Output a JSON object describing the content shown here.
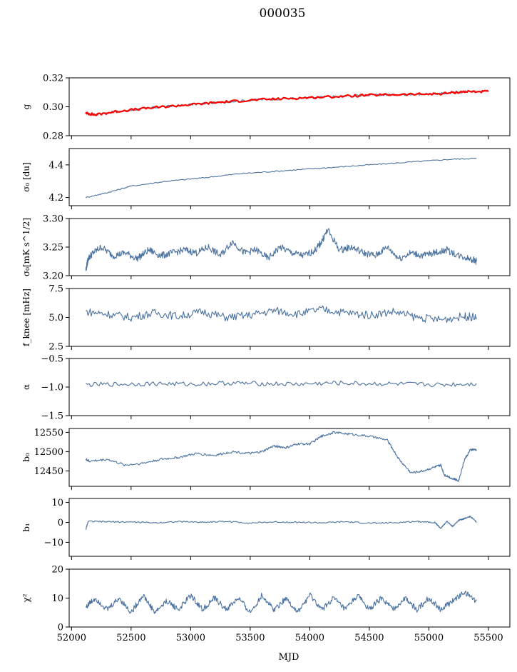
{
  "figure": {
    "title": "000035",
    "xlabel": "MJD"
  },
  "chart_data": [
    {
      "type": "line",
      "id": "g",
      "ylabel": "g",
      "ylim": [
        0.28,
        0.32
      ],
      "yticks": [
        0.28,
        0.3,
        0.32
      ],
      "yticklabels": [
        "0.28",
        "0.30",
        "0.32"
      ],
      "xlim": [
        51980,
        55680
      ],
      "series": [
        {
          "color": "#4c72a0",
          "x": [
            52120,
            52200,
            52400,
            52700,
            53000,
            53300,
            53600,
            53900,
            54200,
            54500,
            54800,
            55100,
            55300,
            55400
          ],
          "y": [
            0.2955,
            0.2945,
            0.297,
            0.2995,
            0.3015,
            0.3035,
            0.305,
            0.306,
            0.307,
            0.308,
            0.3085,
            0.309,
            0.3105,
            0.3105
          ]
        },
        {
          "color": "#ff0000",
          "x": [
            52120,
            52200,
            52400,
            52700,
            53000,
            53300,
            53600,
            53900,
            54200,
            54500,
            54800,
            55100,
            55300,
            55500
          ],
          "y": [
            0.2955,
            0.2945,
            0.297,
            0.2995,
            0.3015,
            0.3035,
            0.305,
            0.306,
            0.307,
            0.308,
            0.3085,
            0.309,
            0.3105,
            0.3105
          ]
        }
      ]
    },
    {
      "type": "line",
      "id": "sigma0",
      "ylabel": "σ₀ [du]",
      "ylim": [
        4.15,
        4.5
      ],
      "yticks": [
        4.2,
        4.4
      ],
      "yticklabels": [
        "4.2",
        "4.4"
      ],
      "xlim": [
        51980,
        55680
      ],
      "series": [
        {
          "color": "#4c72a0",
          "x": [
            52120,
            52300,
            52500,
            52800,
            53100,
            53400,
            53700,
            54000,
            54300,
            54600,
            54900,
            55200,
            55400
          ],
          "y": [
            4.2,
            4.23,
            4.27,
            4.3,
            4.32,
            4.345,
            4.36,
            4.375,
            4.39,
            4.405,
            4.42,
            4.435,
            4.44
          ]
        }
      ]
    },
    {
      "type": "line",
      "id": "sigma0_mK",
      "ylabel": "σ₀[mK s^1/2]",
      "ylim": [
        3.2,
        3.3
      ],
      "yticks": [
        3.2,
        3.25,
        3.3
      ],
      "yticklabels": [
        "3.20",
        "3.25",
        "3.30"
      ],
      "xlim": [
        51980,
        55680
      ],
      "series": [
        {
          "color": "#4c72a0",
          "x": [
            52120,
            52140,
            52180,
            52250,
            52350,
            52450,
            52550,
            52650,
            52750,
            52850,
            52950,
            53050,
            53150,
            53250,
            53350,
            53450,
            53550,
            53650,
            53750,
            53850,
            53950,
            54050,
            54100,
            54150,
            54250,
            54350,
            54450,
            54550,
            54650,
            54750,
            54850,
            54950,
            55050,
            55150,
            55250,
            55350,
            55400
          ],
          "y": [
            3.21,
            3.23,
            3.24,
            3.25,
            3.235,
            3.24,
            3.23,
            3.245,
            3.235,
            3.24,
            3.245,
            3.24,
            3.25,
            3.235,
            3.26,
            3.24,
            3.245,
            3.23,
            3.25,
            3.24,
            3.235,
            3.245,
            3.26,
            3.28,
            3.245,
            3.25,
            3.24,
            3.235,
            3.25,
            3.23,
            3.24,
            3.235,
            3.24,
            3.245,
            3.235,
            3.23,
            3.225
          ]
        }
      ]
    },
    {
      "type": "line",
      "id": "fknee",
      "ylabel": "f_knee [mHz]",
      "ylim": [
        2.5,
        7.5
      ],
      "yticks": [
        2.5,
        5.0,
        7.5
      ],
      "yticklabels": [
        "2.5",
        "5.0",
        "7.5"
      ],
      "xlim": [
        51980,
        55680
      ],
      "series": [
        {
          "color": "#4c72a0",
          "x": [
            52120,
            52300,
            52500,
            52700,
            52900,
            53100,
            53300,
            53500,
            53700,
            53900,
            54100,
            54300,
            54500,
            54700,
            54900,
            55100,
            55300,
            55400
          ],
          "y": [
            5.5,
            5.3,
            5.0,
            5.4,
            5.1,
            5.5,
            5.0,
            5.2,
            5.6,
            5.3,
            5.7,
            5.4,
            5.2,
            5.5,
            5.0,
            4.8,
            5.1,
            5.0
          ]
        }
      ]
    },
    {
      "type": "line",
      "id": "alpha",
      "ylabel": "α",
      "ylim": [
        -1.5,
        -0.5
      ],
      "yticks": [
        -1.5,
        -1.0,
        -0.5
      ],
      "yticklabels": [
        "−1.5",
        "−1.0",
        "−0.5"
      ],
      "xlim": [
        51980,
        55680
      ],
      "series": [
        {
          "color": "#4c72a0",
          "x": [
            52120,
            52400,
            52700,
            53000,
            53300,
            53600,
            53900,
            54200,
            54500,
            54800,
            55100,
            55400
          ],
          "y": [
            -0.96,
            -0.95,
            -0.94,
            -0.95,
            -0.93,
            -0.94,
            -0.95,
            -0.93,
            -0.94,
            -0.95,
            -0.96,
            -0.94
          ]
        }
      ]
    },
    {
      "type": "line",
      "id": "b0",
      "ylabel": "b₀",
      "ylim": [
        12410,
        12560
      ],
      "yticks": [
        12450,
        12500,
        12550
      ],
      "yticklabels": [
        "12450",
        "12500",
        "12550"
      ],
      "xlim": [
        51980,
        55680
      ],
      "series": [
        {
          "color": "#4c72a0",
          "x": [
            52120,
            52150,
            52300,
            52450,
            52600,
            52750,
            52900,
            53050,
            53200,
            53350,
            53500,
            53600,
            53700,
            53800,
            53900,
            54000,
            54100,
            54200,
            54350,
            54500,
            54650,
            54750,
            54850,
            54950,
            55050,
            55100,
            55130,
            55200,
            55250,
            55300,
            55350,
            55400
          ],
          "y": [
            12480,
            12475,
            12480,
            12465,
            12470,
            12480,
            12485,
            12495,
            12490,
            12500,
            12495,
            12500,
            12515,
            12510,
            12520,
            12520,
            12540,
            12550,
            12545,
            12540,
            12530,
            12480,
            12445,
            12450,
            12460,
            12465,
            12440,
            12430,
            12425,
            12480,
            12505,
            12505
          ]
        }
      ]
    },
    {
      "type": "line",
      "id": "b1",
      "ylabel": "b₁",
      "ylim": [
        -17,
        12
      ],
      "yticks": [
        -10,
        0,
        10
      ],
      "yticklabels": [
        "−10",
        "0",
        "10"
      ],
      "xlim": [
        51980,
        55680
      ],
      "series": [
        {
          "color": "#4c72a0",
          "x": [
            52120,
            52140,
            52300,
            52500,
            52700,
            52900,
            53100,
            53300,
            53500,
            53700,
            53900,
            54100,
            54300,
            54500,
            54700,
            54900,
            55050,
            55100,
            55150,
            55200,
            55250,
            55300,
            55350,
            55400
          ],
          "y": [
            -3.5,
            0.5,
            0.3,
            0.2,
            -0.2,
            0.4,
            0.1,
            0.5,
            -0.3,
            0.2,
            0.1,
            -0.2,
            0.3,
            -0.4,
            -0.2,
            0.5,
            0.0,
            -3,
            0.5,
            -2,
            1,
            2,
            3,
            0
          ]
        }
      ]
    },
    {
      "type": "line",
      "id": "chi2",
      "ylabel": "χ²",
      "ylim": [
        0,
        20
      ],
      "yticks": [
        0,
        10,
        20
      ],
      "yticklabels": [
        "0",
        "10",
        "20"
      ],
      "xlim": [
        51980,
        55680
      ],
      "series": [
        {
          "color": "#4c72a0",
          "x": [
            52120,
            52200,
            52300,
            52400,
            52500,
            52600,
            52700,
            52800,
            52900,
            53000,
            53100,
            53200,
            53300,
            53400,
            53500,
            53600,
            53700,
            53800,
            53900,
            54000,
            54100,
            54200,
            54300,
            54400,
            54500,
            54600,
            54700,
            54800,
            54900,
            55000,
            55100,
            55200,
            55300,
            55400
          ],
          "y": [
            7,
            10,
            6,
            10,
            5,
            11,
            5,
            9,
            6,
            11,
            6,
            10,
            6,
            10,
            5,
            11,
            6,
            10,
            5,
            11,
            6,
            10,
            6,
            11,
            6,
            10,
            6,
            10,
            6,
            10,
            6,
            9,
            12,
            9
          ]
        }
      ]
    }
  ],
  "xaxis": {
    "ticks": [
      52000,
      52500,
      53000,
      53500,
      54000,
      54500,
      55000,
      55500
    ],
    "ticklabels": [
      "52000",
      "52500",
      "53000",
      "53500",
      "54000",
      "54500",
      "55000",
      "55500"
    ]
  }
}
